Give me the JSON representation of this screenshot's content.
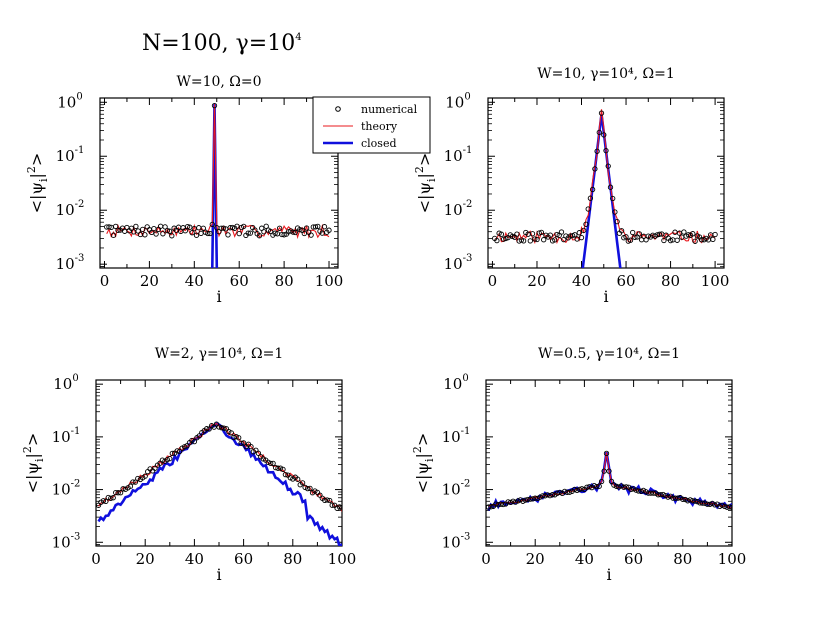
{
  "figure": {
    "title_base": "N=100, γ=10",
    "title_exp": "4"
  },
  "legend": {
    "items": [
      {
        "label": "numerical",
        "style": "marker",
        "color": "#000000"
      },
      {
        "label": "theory",
        "style": "thin-line",
        "color": "#e8191e"
      },
      {
        "label": "closed",
        "style": "thick-line",
        "color": "#1010dd"
      }
    ]
  },
  "colors": {
    "numerical": "#000000",
    "theory": "#e8191e",
    "closed": "#1010dd"
  },
  "chart_data": [
    {
      "type": "line",
      "title": "W=10, Ω=0",
      "xlabel": "i",
      "ylabel": "<|ψ_i|^2>",
      "xlim": [
        -2,
        104
      ],
      "ylim": [
        0.00085,
        1.2
      ],
      "yscale": "log",
      "xticks": [
        0,
        20,
        40,
        60,
        80,
        100
      ],
      "yticks_exp": [
        "0",
        "-1",
        "-2",
        "-3"
      ],
      "ytick_base": "10",
      "params": {
        "peak": 0.95,
        "decay": 7.0,
        "background": 0.0042,
        "closed_decay": 7.0,
        "closed_floor": 1e-05,
        "noise": 0.25,
        "seed": 7
      }
    },
    {
      "type": "line",
      "title": "W=10, γ=10⁴, Ω=1",
      "xlabel": "i",
      "ylabel": "<|ψ_i|^2>",
      "xlim": [
        -2,
        104
      ],
      "ylim": [
        0.00085,
        1.2
      ],
      "yscale": "log",
      "xticks": [
        0,
        20,
        40,
        60,
        80,
        100
      ],
      "yticks_exp": [
        "0",
        "-1",
        "-2",
        "-3"
      ],
      "ytick_base": "10",
      "params": {
        "peak": 0.6,
        "decay": 0.78,
        "background": 0.0033,
        "closed_decay": 0.78,
        "closed_floor": 1e-05,
        "noise": 0.25,
        "seed": 11
      }
    },
    {
      "type": "line",
      "title": "W=2, γ=10⁴, Ω=1",
      "xlabel": "i",
      "ylabel": "<|ψ_i|^2>",
      "xlim": [
        0,
        100
      ],
      "ylim": [
        0.00085,
        1.2
      ],
      "yscale": "log",
      "xticks": [
        0,
        20,
        40,
        60,
        80,
        100
      ],
      "yticks_exp": [
        "0",
        "-1",
        "-2",
        "-3"
      ],
      "ytick_base": "10",
      "params": {
        "peak": 0.18,
        "decay": 0.078,
        "background": 0.0,
        "closed_decay": 0.098,
        "closed_floor": 0.0,
        "noise": 0.12,
        "seed": 23
      }
    },
    {
      "type": "line",
      "title": "W=0.5, γ=10⁴, Ω=1",
      "xlabel": "i",
      "ylabel": "<|ψ_i|^2>",
      "xlim": [
        0,
        100
      ],
      "ylim": [
        0.00085,
        1.2
      ],
      "yscale": "log",
      "xticks": [
        0,
        20,
        40,
        60,
        80,
        100
      ],
      "yticks_exp": [
        "0",
        "-1",
        "-2",
        "-3"
      ],
      "ytick_base": "10",
      "params": {
        "peak": 0.05,
        "decay": 0.0,
        "background": 0.0,
        "closed_decay": 0.0,
        "closed_floor": 0.0,
        "noise": 0.06,
        "seed": 31
      }
    }
  ]
}
